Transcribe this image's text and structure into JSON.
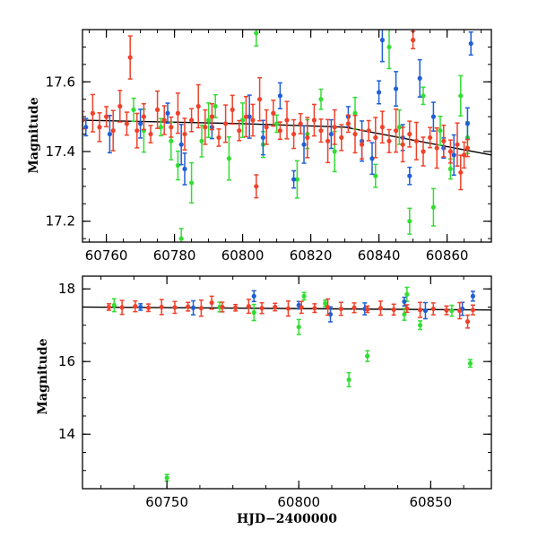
{
  "chart_data": [
    {
      "type": "scatter",
      "panel": "top",
      "title": "",
      "xlabel": "",
      "ylabel": "Magnitude",
      "xlim": [
        60753,
        60873
      ],
      "ylim": [
        17.75,
        17.14
      ],
      "y_inverted": true,
      "xticks": [
        60760,
        60780,
        60800,
        60820,
        60840,
        60860
      ],
      "yticks": [
        17.2,
        17.4,
        17.6
      ],
      "colors": {
        "green": "#33dd33",
        "blue": "#1f5fd6",
        "red": "#f0412a",
        "fit": "#000000"
      },
      "series": [
        {
          "color_key": "green",
          "points": [
            [
              60776,
              17.47
            ],
            [
              60779,
              17.43
            ],
            [
              60781,
              17.36
            ],
            [
              60782,
              17.15
            ],
            [
              60785,
              17.31
            ],
            [
              60788,
              17.43
            ],
            [
              60792,
              17.53
            ],
            [
              60796,
              17.38
            ],
            [
              60800,
              17.49
            ],
            [
              60804,
              17.74
            ],
            [
              60810,
              17.48
            ],
            [
              60816,
              17.32
            ],
            [
              60819,
              17.45
            ],
            [
              60823,
              17.55
            ],
            [
              60827,
              17.4
            ],
            [
              60833,
              17.51
            ],
            [
              60839,
              17.33
            ],
            [
              60843,
              17.7
            ],
            [
              60846,
              17.47
            ],
            [
              60849,
              17.2
            ],
            [
              60853,
              17.56
            ],
            [
              60856,
              17.24
            ],
            [
              60858,
              17.46
            ],
            [
              60861,
              17.35
            ],
            [
              60864,
              17.56
            ],
            [
              60866,
              17.44
            ],
            [
              60768,
              17.52
            ],
            [
              60771,
              17.46
            ],
            [
              60790,
              17.49
            ],
            [
              60806,
              17.42
            ]
          ]
        },
        {
          "color_key": "blue",
          "points": [
            [
              60754,
              17.47
            ],
            [
              60761,
              17.45
            ],
            [
              60770,
              17.48
            ],
            [
              60778,
              17.51
            ],
            [
              60782,
              17.42
            ],
            [
              60783,
              17.35
            ],
            [
              60791,
              17.47
            ],
            [
              60802,
              17.5
            ],
            [
              60806,
              17.44
            ],
            [
              60811,
              17.56
            ],
            [
              60815,
              17.32
            ],
            [
              60818,
              17.42
            ],
            [
              60826,
              17.45
            ],
            [
              60831,
              17.5
            ],
            [
              60835,
              17.43
            ],
            [
              60838,
              17.38
            ],
            [
              60840,
              17.57
            ],
            [
              60841,
              17.72
            ],
            [
              60845,
              17.58
            ],
            [
              60847,
              17.44
            ],
            [
              60849,
              17.33
            ],
            [
              60852,
              17.61
            ],
            [
              60856,
              17.5
            ],
            [
              60859,
              17.41
            ],
            [
              60862,
              17.39
            ],
            [
              60866,
              17.48
            ],
            [
              60867,
              17.71
            ]
          ]
        },
        {
          "color_key": "red",
          "points": [
            [
              60753,
              17.49
            ],
            [
              60756,
              17.51
            ],
            [
              60758,
              17.47
            ],
            [
              60760,
              17.5
            ],
            [
              60762,
              17.46
            ],
            [
              60764,
              17.53
            ],
            [
              60766,
              17.48
            ],
            [
              60767,
              17.67
            ],
            [
              60769,
              17.46
            ],
            [
              60771,
              17.5
            ],
            [
              60773,
              17.45
            ],
            [
              60775,
              17.52
            ],
            [
              60777,
              17.49
            ],
            [
              60779,
              17.47
            ],
            [
              60781,
              17.51
            ],
            [
              60783,
              17.45
            ],
            [
              60785,
              17.49
            ],
            [
              60787,
              17.53
            ],
            [
              60789,
              17.47
            ],
            [
              60791,
              17.5
            ],
            [
              60793,
              17.44
            ],
            [
              60795,
              17.48
            ],
            [
              60797,
              17.52
            ],
            [
              60799,
              17.46
            ],
            [
              60801,
              17.5
            ],
            [
              60803,
              17.49
            ],
            [
              60804,
              17.3
            ],
            [
              60805,
              17.55
            ],
            [
              60807,
              17.47
            ],
            [
              60809,
              17.51
            ],
            [
              60811,
              17.46
            ],
            [
              60813,
              17.49
            ],
            [
              60815,
              17.45
            ],
            [
              60817,
              17.48
            ],
            [
              60819,
              17.44
            ],
            [
              60821,
              17.49
            ],
            [
              60823,
              17.46
            ],
            [
              60825,
              17.43
            ],
            [
              60827,
              17.47
            ],
            [
              60829,
              17.44
            ],
            [
              60831,
              17.48
            ],
            [
              60833,
              17.45
            ],
            [
              60835,
              17.42
            ],
            [
              60837,
              17.46
            ],
            [
              60839,
              17.44
            ],
            [
              60841,
              17.47
            ],
            [
              60843,
              17.43
            ],
            [
              60845,
              17.46
            ],
            [
              60847,
              17.42
            ],
            [
              60849,
              17.45
            ],
            [
              60850,
              17.72
            ],
            [
              60851,
              17.43
            ],
            [
              60853,
              17.4
            ],
            [
              60855,
              17.44
            ],
            [
              60857,
              17.41
            ],
            [
              60859,
              17.43
            ],
            [
              60861,
              17.4
            ],
            [
              60863,
              17.42
            ],
            [
              60864,
              17.34
            ],
            [
              60865,
              17.39
            ],
            [
              60866,
              17.41
            ]
          ]
        }
      ],
      "fit": {
        "x": [
          60753,
          60800,
          60830,
          60873
        ],
        "y": [
          17.49,
          17.48,
          17.47,
          17.39
        ]
      }
    },
    {
      "type": "scatter",
      "panel": "bottom",
      "title": "",
      "xlabel": "HJD−2400000",
      "ylabel": "Magnitude",
      "xlim": [
        60718,
        60873
      ],
      "ylim": [
        18.35,
        12.5
      ],
      "y_inverted": true,
      "xticks": [
        60750,
        60800,
        60850
      ],
      "yticks": [
        14,
        16,
        18
      ],
      "colors": {
        "green": "#33dd33",
        "blue": "#1f5fd6",
        "red": "#f0412a",
        "fit": "#000000"
      },
      "series": [
        {
          "color_key": "green",
          "points": [
            [
              60750,
              12.8
            ],
            [
              60819,
              15.5
            ],
            [
              60826,
              16.15
            ],
            [
              60865,
              15.95
            ],
            [
              60800,
              16.95
            ],
            [
              60840,
              17.3
            ],
            [
              60846,
              17.0
            ],
            [
              60783,
              17.35
            ],
            [
              60730,
              17.55
            ],
            [
              60770,
              17.5
            ],
            [
              60810,
              17.6
            ],
            [
              60841,
              17.85
            ],
            [
              60858,
              17.4
            ],
            [
              60802,
              17.8
            ]
          ]
        },
        {
          "color_key": "blue",
          "points": [
            [
              60740,
              17.5
            ],
            [
              60760,
              17.48
            ],
            [
              60783,
              17.8
            ],
            [
              60800,
              17.55
            ],
            [
              60812,
              17.3
            ],
            [
              60825,
              17.45
            ],
            [
              60840,
              17.65
            ],
            [
              60848,
              17.4
            ],
            [
              60862,
              17.45
            ],
            [
              60866,
              17.8
            ]
          ]
        },
        {
          "color_key": "red",
          "points": [
            [
              60728,
              17.5
            ],
            [
              60733,
              17.49
            ],
            [
              60738,
              17.52
            ],
            [
              60743,
              17.48
            ],
            [
              60748,
              17.5
            ],
            [
              60753,
              17.49
            ],
            [
              60758,
              17.51
            ],
            [
              60763,
              17.47
            ],
            [
              60767,
              17.62
            ],
            [
              60771,
              17.5
            ],
            [
              60776,
              17.48
            ],
            [
              60781,
              17.52
            ],
            [
              60786,
              17.47
            ],
            [
              60791,
              17.5
            ],
            [
              60796,
              17.46
            ],
            [
              60801,
              17.49
            ],
            [
              60806,
              17.47
            ],
            [
              60811,
              17.5
            ],
            [
              60816,
              17.45
            ],
            [
              60821,
              17.48
            ],
            [
              60826,
              17.44
            ],
            [
              60831,
              17.47
            ],
            [
              60836,
              17.43
            ],
            [
              60841,
              17.46
            ],
            [
              60846,
              17.42
            ],
            [
              60851,
              17.45
            ],
            [
              60856,
              17.41
            ],
            [
              60861,
              17.4
            ],
            [
              60864,
              17.1
            ],
            [
              60866,
              17.42
            ]
          ]
        }
      ],
      "fit": {
        "x": [
          60718,
          60873
        ],
        "y": [
          17.5,
          17.42
        ]
      }
    }
  ]
}
